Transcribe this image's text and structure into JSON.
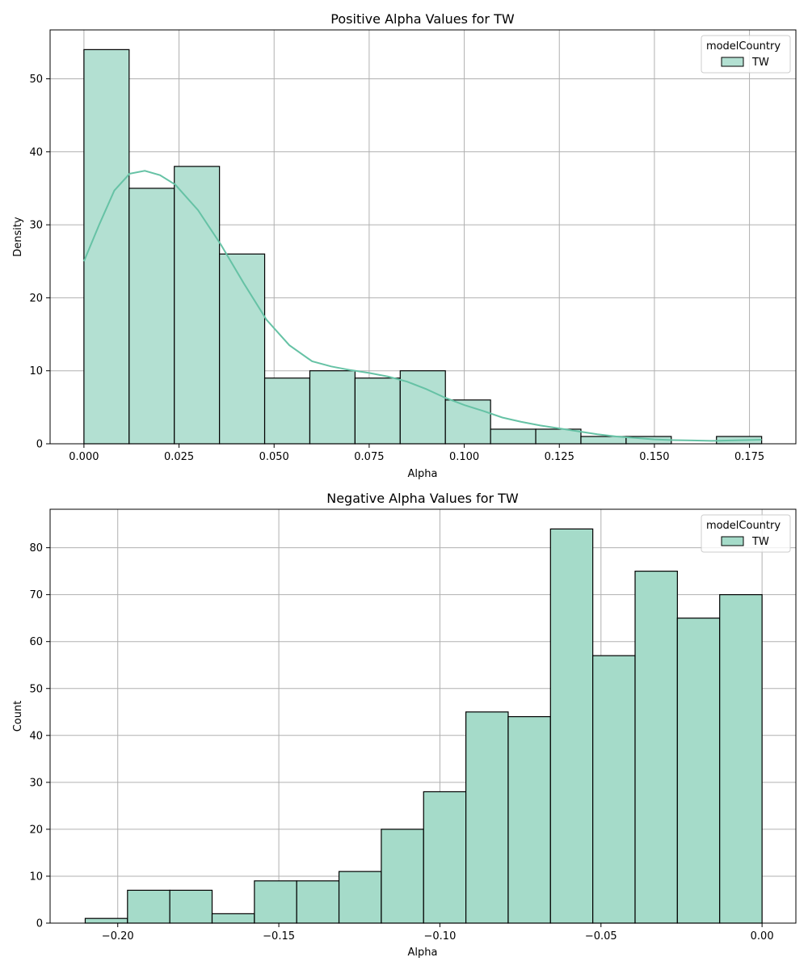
{
  "chart_data": [
    {
      "type": "bar",
      "title": "Positive Alpha Values for TW",
      "xlabel": "Alpha",
      "ylabel": "Density",
      "xlim": [
        -0.0089,
        0.1872
      ],
      "ylim": [
        0,
        56.7
      ],
      "xticks": [
        0.0,
        0.025,
        0.05,
        0.075,
        0.1,
        0.125,
        0.15,
        0.175
      ],
      "xtick_labels": [
        "0.000",
        "0.025",
        "0.050",
        "0.075",
        "0.100",
        "0.125",
        "0.150",
        "0.175"
      ],
      "yticks": [
        0,
        10,
        20,
        30,
        40,
        50
      ],
      "ytick_labels": [
        "0",
        "10",
        "20",
        "30",
        "40",
        "50"
      ],
      "grid": true,
      "bin_edges": [
        0.0,
        0.01188,
        0.02376,
        0.03564,
        0.04752,
        0.0594,
        0.07128,
        0.08316,
        0.09504,
        0.10692,
        0.1188,
        0.13068,
        0.14256,
        0.15444,
        0.16632,
        0.1782
      ],
      "values": [
        54,
        35,
        38,
        26,
        9,
        10,
        9,
        10,
        6,
        2,
        2,
        1,
        1,
        0,
        1
      ],
      "kde": {
        "x": [
          0.0,
          0.004,
          0.008,
          0.012,
          0.016,
          0.02,
          0.024,
          0.03,
          0.036,
          0.042,
          0.048,
          0.054,
          0.06,
          0.065,
          0.07,
          0.075,
          0.08,
          0.085,
          0.09,
          0.095,
          0.1,
          0.105,
          0.11,
          0.115,
          0.12,
          0.125,
          0.13,
          0.135,
          0.14,
          0.145,
          0.15,
          0.155,
          0.16,
          0.165,
          0.17,
          0.1782
        ],
        "y": [
          25,
          30,
          34.7,
          37,
          37.4,
          36.8,
          35.5,
          32,
          27.3,
          22,
          17,
          13.5,
          11.3,
          10.6,
          10.1,
          9.7,
          9.2,
          8.5,
          7.5,
          6.3,
          5.3,
          4.5,
          3.6,
          3.0,
          2.5,
          2.1,
          1.7,
          1.3,
          1.0,
          0.8,
          0.6,
          0.5,
          0.45,
          0.4,
          0.45,
          0.55
        ]
      },
      "legend": {
        "title": "modelCountry",
        "entries": [
          "TW"
        ],
        "placement": "top-right"
      }
    },
    {
      "type": "bar",
      "title": "Negative Alpha Values for TW",
      "xlabel": "Alpha",
      "ylabel": "Count",
      "xlim": [
        -0.221,
        0.0105
      ],
      "ylim": [
        0,
        88.2
      ],
      "xticks": [
        -0.2,
        -0.15,
        -0.1,
        -0.05,
        0.0
      ],
      "xtick_labels": [
        "−0.20",
        "−0.15",
        "−0.10",
        "−0.05",
        "0.00"
      ],
      "yticks": [
        0,
        10,
        20,
        30,
        40,
        50,
        60,
        70,
        80
      ],
      "ytick_labels": [
        "0",
        "10",
        "20",
        "30",
        "40",
        "50",
        "60",
        "70",
        "80"
      ],
      "grid": true,
      "bin_edges": [
        -0.2101,
        -0.19697,
        -0.18384,
        -0.17071,
        -0.15758,
        -0.14445,
        -0.13132,
        -0.11819,
        -0.10506,
        -0.09193,
        -0.0788,
        -0.06567,
        -0.05254,
        -0.03941,
        -0.02628,
        -0.01315,
        0.0
      ],
      "values": [
        1,
        7,
        7,
        2,
        9,
        9,
        11,
        20,
        28,
        45,
        44,
        84,
        57,
        75,
        65,
        70
      ],
      "legend": {
        "title": "modelCountry",
        "entries": [
          "TW"
        ],
        "placement": "top-right"
      }
    }
  ],
  "colors": {
    "top_bar_fill": "#b3e0d2",
    "bottom_bar_fill": "#a5dbc9",
    "bar_edge": "#000000",
    "kde_line": "#66c2a5",
    "grid": "#b0b0b0"
  }
}
